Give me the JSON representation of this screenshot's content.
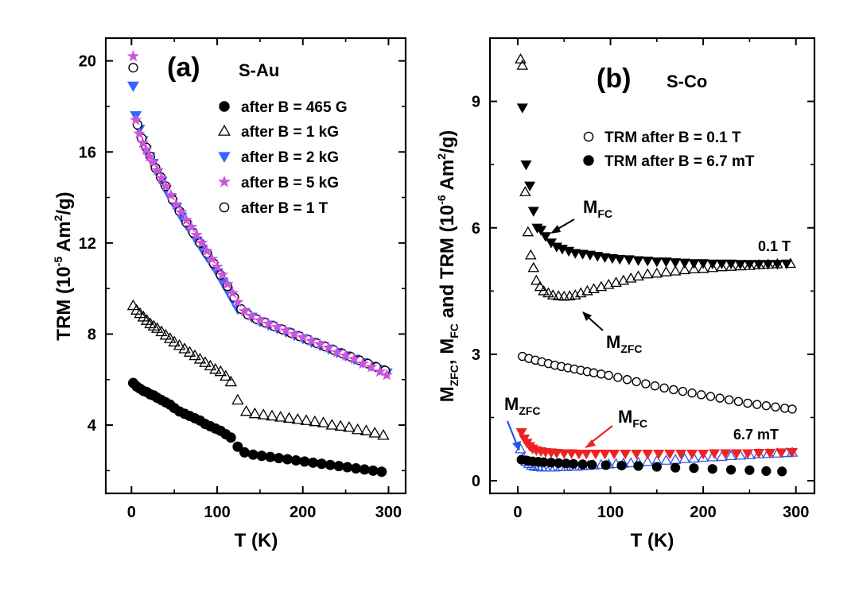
{
  "chart_data": [
    {
      "type": "scatter",
      "panel_label": "(a)",
      "sample": "S-Au",
      "xlabel": "T (K)",
      "ylabel": {
        "main": "TRM (10",
        "exp": "-5",
        "unit": " Am",
        "exp2": "2",
        "end": "/g)"
      },
      "xlim": [
        -30,
        320
      ],
      "ylim": [
        1.0,
        21.0
      ],
      "xticks": [
        0,
        100,
        200,
        300
      ],
      "yticks": [
        4,
        8,
        12,
        16,
        20
      ],
      "xtick_labels": [
        "0",
        "100",
        "200",
        "300"
      ],
      "ytick_labels": [
        "4",
        "8",
        "12",
        "16",
        "20"
      ],
      "legend": {
        "placement": "top-right",
        "entries": [
          "after B = 465 G",
          "after B = 1 kG",
          "after B = 2 kG",
          "after B = 5 kG",
          "after B = 1 T"
        ]
      },
      "series": [
        {
          "name": "after B = 465 G",
          "marker": "circle-filled",
          "color": "#000000",
          "x": [
            2,
            6,
            10,
            14,
            18,
            22,
            26,
            30,
            35,
            40,
            45,
            50,
            56,
            62,
            68,
            74,
            80,
            86,
            92,
            98,
            104,
            110,
            116,
            124,
            132,
            142,
            152,
            162,
            172,
            182,
            192,
            202,
            212,
            222,
            232,
            242,
            252,
            262,
            272,
            282,
            292
          ],
          "y": [
            5.85,
            5.7,
            5.6,
            5.5,
            5.45,
            5.35,
            5.3,
            5.2,
            5.1,
            5.0,
            4.9,
            4.75,
            4.6,
            4.5,
            4.4,
            4.3,
            4.2,
            4.05,
            3.95,
            3.85,
            3.75,
            3.6,
            3.45,
            3.05,
            2.8,
            2.7,
            2.65,
            2.6,
            2.55,
            2.5,
            2.45,
            2.4,
            2.35,
            2.3,
            2.25,
            2.2,
            2.15,
            2.1,
            2.05,
            2.0,
            1.95
          ]
        },
        {
          "name": "after B = 1 kG",
          "marker": "triangle-up-open",
          "color": "#000000",
          "x": [
            2,
            6,
            10,
            14,
            18,
            22,
            26,
            30,
            35,
            40,
            45,
            50,
            56,
            62,
            68,
            74,
            80,
            86,
            92,
            98,
            104,
            110,
            116,
            124,
            134,
            144,
            154,
            164,
            174,
            184,
            194,
            204,
            214,
            224,
            234,
            244,
            254,
            264,
            274,
            284,
            294
          ],
          "y": [
            9.25,
            9.05,
            8.9,
            8.75,
            8.6,
            8.45,
            8.35,
            8.25,
            8.1,
            7.95,
            7.8,
            7.65,
            7.5,
            7.35,
            7.2,
            7.05,
            6.9,
            6.75,
            6.6,
            6.45,
            6.35,
            6.15,
            5.9,
            5.1,
            4.6,
            4.5,
            4.45,
            4.4,
            4.35,
            4.3,
            4.25,
            4.2,
            4.15,
            4.1,
            4.0,
            3.95,
            3.9,
            3.8,
            3.75,
            3.65,
            3.55
          ]
        },
        {
          "name": "after B = 2 kG",
          "marker": "triangle-down-filled",
          "color": "#3366ff",
          "x": [
            2,
            5,
            9,
            13,
            17,
            21,
            25,
            30,
            35,
            40,
            46,
            52,
            58,
            64,
            70,
            76,
            82,
            88,
            94,
            100,
            106,
            112,
            118,
            124,
            132,
            140,
            150,
            160,
            170,
            180,
            190,
            200,
            210,
            220,
            230,
            240,
            250,
            260,
            270,
            280,
            290,
            298
          ],
          "y": [
            18.9,
            17.6,
            17.0,
            16.5,
            16.1,
            15.8,
            15.5,
            15.1,
            14.7,
            14.35,
            13.95,
            13.55,
            13.15,
            12.8,
            12.45,
            12.1,
            11.75,
            11.4,
            11.05,
            10.7,
            10.3,
            9.9,
            9.5,
            9.1,
            8.95,
            8.75,
            8.55,
            8.4,
            8.25,
            8.1,
            7.95,
            7.8,
            7.65,
            7.5,
            7.35,
            7.2,
            7.05,
            6.9,
            6.75,
            6.6,
            6.45,
            6.3
          ]
        },
        {
          "name": "after B = 5 kG",
          "marker": "star-filled",
          "color": "#cc55dd",
          "x": [
            2,
            5,
            9,
            13,
            17,
            21,
            25,
            30,
            35,
            40,
            46,
            52,
            58,
            64,
            70,
            76,
            82,
            88,
            94,
            100,
            106,
            112,
            118,
            124,
            132,
            140,
            150,
            160,
            170,
            180,
            190,
            200,
            210,
            220,
            230,
            240,
            250,
            260,
            270,
            280,
            290,
            298
          ],
          "y": [
            20.2,
            17.4,
            16.8,
            16.4,
            16.1,
            15.8,
            15.55,
            15.2,
            14.85,
            14.5,
            14.1,
            13.7,
            13.35,
            13.0,
            12.7,
            12.35,
            12.0,
            11.65,
            11.3,
            10.95,
            10.6,
            10.2,
            9.8,
            9.4,
            9.0,
            8.8,
            8.6,
            8.45,
            8.3,
            8.15,
            8.0,
            7.85,
            7.7,
            7.55,
            7.4,
            7.2,
            7.05,
            6.9,
            6.7,
            6.55,
            6.35,
            6.2
          ]
        },
        {
          "name": "after B = 1 T",
          "marker": "circle-open",
          "color": "#000000",
          "x": [
            2,
            7,
            12,
            17,
            22,
            28,
            34,
            40,
            48,
            56,
            64,
            72,
            80,
            88,
            96,
            104,
            112,
            120,
            128,
            136,
            146,
            156,
            166,
            176,
            186,
            196,
            206,
            216,
            226,
            236,
            246,
            256,
            266,
            276,
            286,
            296
          ],
          "y": [
            19.7,
            17.2,
            16.6,
            16.2,
            15.8,
            15.3,
            14.9,
            14.5,
            13.9,
            13.4,
            12.9,
            12.45,
            12.0,
            11.55,
            11.1,
            10.6,
            10.1,
            9.6,
            9.1,
            8.85,
            8.65,
            8.5,
            8.35,
            8.2,
            8.05,
            7.9,
            7.75,
            7.6,
            7.45,
            7.3,
            7.15,
            7.0,
            6.85,
            6.7,
            6.55,
            6.4
          ]
        }
      ]
    },
    {
      "type": "scatter",
      "panel_label": "(b)",
      "sample": "S-Co",
      "xlabel": "T (K)",
      "ylabel": {
        "m1": "M",
        "s1": "ZFC",
        "m2": ", M",
        "s2": "FC",
        "m3": " and TRM  (10",
        "exp": "-6",
        "unit": " Am",
        "exp2": "2",
        "end": "/g)"
      },
      "xlim": [
        -30,
        320
      ],
      "ylim": [
        -0.3,
        10.5
      ],
      "xticks": [
        0,
        100,
        200,
        300
      ],
      "yticks": [
        0,
        3,
        6,
        9
      ],
      "xtick_labels": [
        "0",
        "100",
        "200",
        "300"
      ],
      "ytick_labels": [
        "0",
        "3",
        "6",
        "9"
      ],
      "legend": {
        "placement": "top-right",
        "entries": [
          "TRM after B = 0.1 T",
          "TRM after B = 6.7 mT"
        ]
      },
      "annotations": {
        "field_high": "0.1 T",
        "field_low": "6.7 mT",
        "m_label": "M",
        "fc_sub": "FC",
        "zfc_sub": "ZFC"
      },
      "series": [
        {
          "name": "M_FC 0.1 T",
          "marker": "triangle-down-filled",
          "color": "#000000",
          "x": [
            5,
            9,
            13,
            17,
            21,
            25,
            30,
            36,
            42,
            48,
            55,
            62,
            70,
            78,
            86,
            94,
            102,
            110,
            120,
            130,
            140,
            150,
            160,
            170,
            180,
            190,
            200,
            210,
            220,
            230,
            240,
            250,
            260,
            270,
            280,
            290
          ],
          "y": [
            8.85,
            7.5,
            7.0,
            6.4,
            6.0,
            5.95,
            5.8,
            5.65,
            5.55,
            5.5,
            5.45,
            5.4,
            5.38,
            5.36,
            5.33,
            5.3,
            5.28,
            5.26,
            5.25,
            5.23,
            5.22,
            5.2,
            5.2,
            5.18,
            5.17,
            5.16,
            5.16,
            5.15,
            5.15,
            5.15,
            5.14,
            5.14,
            5.14,
            5.14,
            5.14,
            5.15
          ]
        },
        {
          "name": "M_ZFC 0.1 T",
          "marker": "triangle-up-open",
          "color": "#000000",
          "x": [
            3,
            5,
            8,
            11,
            14,
            17,
            20,
            24,
            28,
            33,
            38,
            44,
            50,
            56,
            62,
            68,
            75,
            82,
            90,
            98,
            106,
            114,
            122,
            130,
            140,
            150,
            160,
            170,
            180,
            190,
            200,
            210,
            220,
            230,
            240,
            250,
            260,
            270,
            280,
            294
          ],
          "y": [
            10.0,
            9.85,
            6.85,
            5.9,
            5.35,
            5.05,
            4.75,
            4.6,
            4.5,
            4.45,
            4.4,
            4.38,
            4.37,
            4.38,
            4.4,
            4.45,
            4.5,
            4.55,
            4.6,
            4.65,
            4.7,
            4.75,
            4.8,
            4.85,
            4.9,
            4.92,
            4.95,
            4.97,
            5.0,
            5.02,
            5.03,
            5.05,
            5.07,
            5.08,
            5.09,
            5.1,
            5.12,
            5.13,
            5.14,
            5.15
          ]
        },
        {
          "name": "TRM after B = 0.1 T",
          "marker": "circle-open",
          "color": "#000000",
          "x": [
            5,
            12,
            19,
            26,
            33,
            40,
            47,
            54,
            61,
            68,
            75,
            82,
            90,
            98,
            108,
            118,
            128,
            138,
            148,
            158,
            168,
            178,
            188,
            198,
            208,
            218,
            228,
            238,
            248,
            258,
            268,
            278,
            288,
            296
          ],
          "y": [
            2.95,
            2.9,
            2.86,
            2.82,
            2.78,
            2.74,
            2.71,
            2.68,
            2.65,
            2.62,
            2.59,
            2.56,
            2.53,
            2.5,
            2.45,
            2.4,
            2.35,
            2.3,
            2.25,
            2.2,
            2.16,
            2.12,
            2.08,
            2.04,
            2.0,
            1.96,
            1.92,
            1.88,
            1.84,
            1.81,
            1.78,
            1.75,
            1.72,
            1.7
          ]
        },
        {
          "name": "TRM after B = 6.7 mT",
          "marker": "circle-filled",
          "color": "#000000",
          "x": [
            4,
            10,
            16,
            22,
            28,
            36,
            44,
            52,
            60,
            70,
            80,
            95,
            112,
            130,
            150,
            170,
            190,
            210,
            230,
            250,
            268,
            285
          ],
          "y": [
            0.5,
            0.48,
            0.46,
            0.45,
            0.44,
            0.43,
            0.42,
            0.41,
            0.4,
            0.39,
            0.38,
            0.37,
            0.36,
            0.35,
            0.33,
            0.31,
            0.3,
            0.28,
            0.26,
            0.25,
            0.23,
            0.22
          ]
        },
        {
          "name": "M_FC 6.7 mT",
          "marker": "triangle-down-filled",
          "color": "#ee2222",
          "x": [
            4,
            7,
            10,
            13,
            16,
            20,
            25,
            30,
            36,
            42,
            50,
            58,
            66,
            74,
            84,
            94,
            104,
            116,
            128,
            140,
            152,
            164,
            176,
            188,
            200,
            212,
            224,
            236,
            248,
            260,
            272,
            284,
            296
          ],
          "y": [
            1.15,
            1.0,
            0.9,
            0.82,
            0.76,
            0.72,
            0.7,
            0.68,
            0.67,
            0.66,
            0.65,
            0.65,
            0.64,
            0.64,
            0.64,
            0.64,
            0.64,
            0.64,
            0.64,
            0.64,
            0.64,
            0.64,
            0.64,
            0.64,
            0.64,
            0.65,
            0.65,
            0.65,
            0.65,
            0.66,
            0.66,
            0.67,
            0.68
          ]
        },
        {
          "name": "M_ZFC 6.7 mT",
          "marker": "triangle-up-open",
          "color": "#3355dd",
          "x": [
            3,
            6,
            9,
            12,
            15,
            18,
            22,
            26,
            30,
            35,
            40,
            46,
            52,
            58,
            64,
            70,
            76,
            82,
            90,
            98,
            106,
            114,
            122,
            130,
            140,
            150,
            160,
            170,
            180,
            190,
            200,
            210,
            220,
            230,
            240,
            250,
            260,
            270,
            280,
            290,
            296
          ],
          "y": [
            0.75,
            0.55,
            0.45,
            0.4,
            0.36,
            0.34,
            0.33,
            0.32,
            0.32,
            0.32,
            0.32,
            0.33,
            0.33,
            0.34,
            0.34,
            0.35,
            0.36,
            0.37,
            0.38,
            0.39,
            0.4,
            0.41,
            0.42,
            0.43,
            0.45,
            0.47,
            0.48,
            0.5,
            0.52,
            0.53,
            0.55,
            0.56,
            0.57,
            0.59,
            0.6,
            0.61,
            0.63,
            0.64,
            0.65,
            0.66,
            0.67
          ]
        }
      ]
    }
  ]
}
